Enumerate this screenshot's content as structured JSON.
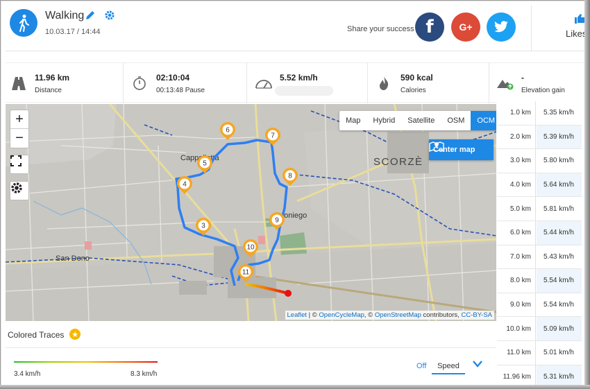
{
  "activity": {
    "type": "Walking",
    "datetime": "10.03.17 / 14:44"
  },
  "share": {
    "label": "Share your success",
    "facebook": "f",
    "google": "G+",
    "likes_label": "Likes"
  },
  "stats": [
    {
      "icon": "road-icon",
      "value": "11.96 km",
      "label": "Distance"
    },
    {
      "icon": "stopwatch-icon",
      "value": "02:10:04",
      "label": "00:13:48 Pause"
    },
    {
      "icon": "speedometer-icon",
      "value": "5.52 km/h",
      "label": ""
    },
    {
      "icon": "flame-icon",
      "value": "590 kcal",
      "label": "Calories"
    },
    {
      "icon": "mountain-icon",
      "value": "-",
      "label": "Elevation gain"
    }
  ],
  "map": {
    "zoom_in": "+",
    "zoom_out": "−",
    "layers": [
      "Map",
      "Hybrid",
      "Satellite",
      "OSM",
      "OCM"
    ],
    "active_layer": "OCM",
    "center_button": "Center map",
    "places": [
      "Cappelletta",
      "SCORZÈ",
      "Moniego",
      "San Dono"
    ],
    "markers": [
      "3",
      "4",
      "5",
      "6",
      "7",
      "8",
      "9",
      "10",
      "11"
    ],
    "attribution": {
      "leaflet": "Leaflet",
      "sep1": " | © ",
      "ocm": "OpenCycleMap",
      "sep2": ", © ",
      "osm": "OpenStreetMap",
      "sep3": " contributors, ",
      "license": "CC-BY-SA"
    }
  },
  "traces": {
    "title": "Colored Traces",
    "min": "3.4 km/h",
    "max": "8.3 km/h",
    "off": "Off",
    "mode": "Speed"
  },
  "splits": [
    {
      "km": "1.0 km",
      "speed": "5.35 km/h"
    },
    {
      "km": "2.0 km",
      "speed": "5.39 km/h"
    },
    {
      "km": "3.0 km",
      "speed": "5.80 km/h"
    },
    {
      "km": "4.0 km",
      "speed": "5.64 km/h"
    },
    {
      "km": "5.0 km",
      "speed": "5.81 km/h"
    },
    {
      "km": "6.0 km",
      "speed": "5.44 km/h"
    },
    {
      "km": "7.0 km",
      "speed": "5.43 km/h"
    },
    {
      "km": "8.0 km",
      "speed": "5.54 km/h"
    },
    {
      "km": "9.0 km",
      "speed": "5.54 km/h"
    },
    {
      "km": "10.0 km",
      "speed": "5.09 km/h"
    },
    {
      "km": "11.0 km",
      "speed": "5.01 km/h"
    },
    {
      "km": "11.96 km",
      "speed": "5.31 km/h"
    }
  ],
  "colors": {
    "accent": "#1e88e5",
    "route": "#2f7ff0",
    "facebook": "#2b4a7e",
    "google": "#dc4a38",
    "twitter": "#1da1f2",
    "marker": "#f5a623"
  }
}
